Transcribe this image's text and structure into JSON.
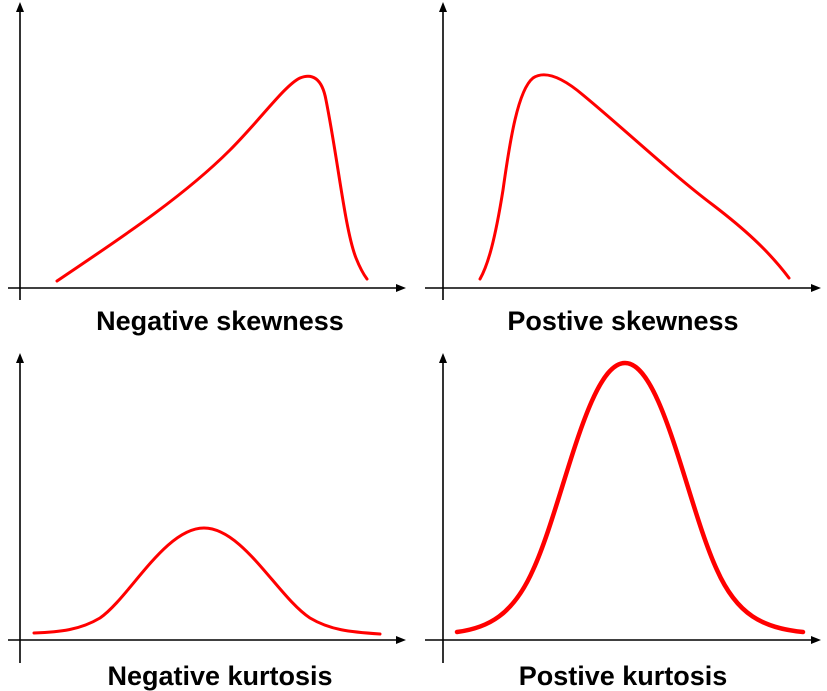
{
  "curve_color": "#ff0000",
  "axis_color": "#000000",
  "panels": [
    {
      "caption": "Negative skewness",
      "shape": "left-skewed distribution curve"
    },
    {
      "caption": "Postive skewness",
      "shape": "right-skewed distribution curve"
    },
    {
      "caption": "Negative kurtosis",
      "shape": "flat, wide bell curve"
    },
    {
      "caption": "Postive kurtosis",
      "shape": "tall, narrow bell curve"
    }
  ]
}
